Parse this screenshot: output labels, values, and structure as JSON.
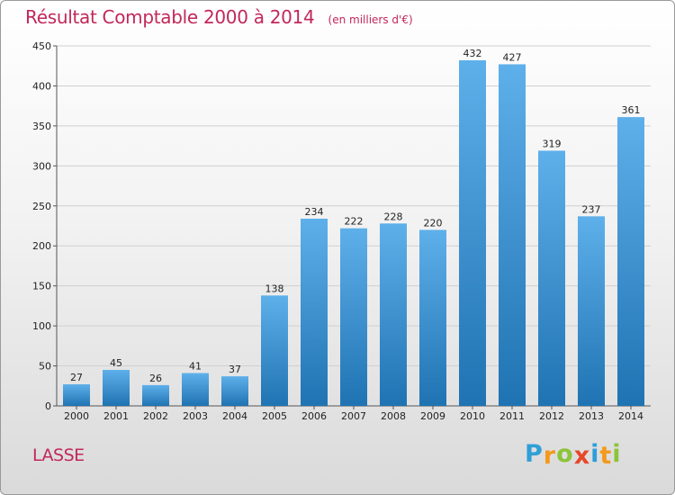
{
  "title": "Résultat Comptable 2000 à 2014",
  "subtitle": "(en milliers d'€)",
  "commune": "LASSE",
  "logo": {
    "letters": [
      "P",
      "r",
      "o",
      "x",
      "i",
      "t",
      "i"
    ],
    "colors": [
      "#2f9fd8",
      "#f29a1d",
      "#8cc43a",
      "#e8462b",
      "#2f9fd8",
      "#f29a1d",
      "#8cc43a"
    ]
  },
  "colors": {
    "bar_top": "#5eb0ea",
    "bar_bottom": "#1f73b2",
    "title": "#c2285a"
  },
  "chart_data": {
    "type": "bar",
    "categories": [
      "2000",
      "2001",
      "2002",
      "2003",
      "2004",
      "2005",
      "2006",
      "2007",
      "2008",
      "2009",
      "2010",
      "2011",
      "2012",
      "2013",
      "2014"
    ],
    "values": [
      27,
      45,
      26,
      41,
      37,
      138,
      234,
      222,
      228,
      220,
      432,
      427,
      319,
      237,
      361
    ],
    "ylim": [
      0,
      450
    ],
    "yticks": [
      0,
      50,
      100,
      150,
      200,
      250,
      300,
      350,
      400,
      450
    ],
    "grid": true,
    "data_labels": true
  }
}
